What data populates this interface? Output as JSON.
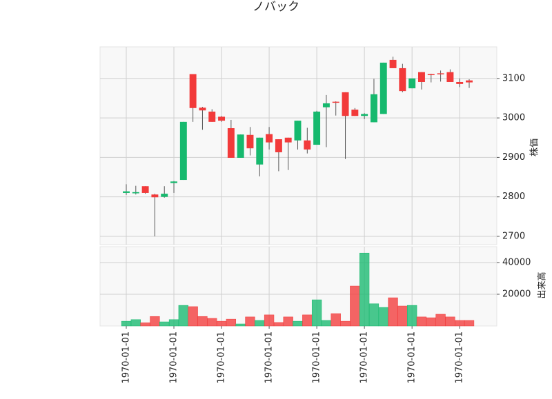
{
  "chart_data": {
    "type": "candlestick",
    "title": "ノバック",
    "categories": [
      "1970-01-01",
      null,
      null,
      null,
      null,
      "1970-01-01",
      null,
      null,
      null,
      null,
      "1970-01-01",
      null,
      null,
      null,
      null,
      "1970-01-01",
      null,
      null,
      null,
      null,
      "1970-01-01",
      null,
      null,
      null,
      null,
      "1970-01-01",
      null,
      null,
      null,
      null,
      "1970-01-01",
      null,
      null,
      null,
      null,
      "1970-01-01",
      null
    ],
    "open": [
      2810,
      2809,
      2827,
      2806,
      2800,
      2835,
      2843,
      3111,
      3026,
      3016,
      3003,
      2974,
      2899,
      2957,
      2882,
      2959,
      2946,
      2950,
      2943,
      2943,
      2932,
      3027,
      3041,
      3065,
      3021,
      3005,
      2989,
      3010,
      3147,
      3126,
      3075,
      3116,
      3111,
      3113,
      3116,
      3091,
      3095
    ],
    "high": [
      2832,
      2828,
      2827,
      2808,
      2827,
      2840,
      2990,
      3111,
      3028,
      3022,
      3005,
      2995,
      2958,
      2977,
      2950,
      2977,
      2946,
      2950,
      2993,
      2975,
      3018,
      3058,
      3042,
      3065,
      3025,
      3012,
      3099,
      3140,
      3155,
      3137,
      3100,
      3116,
      3112,
      3120,
      3123,
      3100,
      3098
    ],
    "low": [
      2805,
      2806,
      2808,
      2700,
      2798,
      2810,
      2843,
      2990,
      2970,
      2990,
      2990,
      2899,
      2899,
      2905,
      2852,
      2920,
      2865,
      2868,
      2920,
      2910,
      2932,
      2926,
      3006,
      2896,
      3005,
      2997,
      2989,
      3010,
      3126,
      3065,
      3075,
      3072,
      3090,
      3092,
      3091,
      3078,
      3076
    ],
    "close": [
      2814,
      2812,
      2810,
      2799,
      2808,
      2839,
      2990,
      3025,
      3019,
      2990,
      2993,
      2899,
      2958,
      2923,
      2950,
      2938,
      2913,
      2938,
      2993,
      2920,
      3016,
      3037,
      3040,
      3005,
      3005,
      3010,
      3060,
      3140,
      3126,
      3068,
      3100,
      3091,
      3110,
      3111,
      3091,
      3086,
      3090
    ],
    "volume": [
      3000,
      4000,
      2000,
      6000,
      2600,
      4000,
      13000,
      12200,
      6000,
      4800,
      3000,
      4300,
      1300,
      5700,
      3500,
      7000,
      2200,
      5700,
      3000,
      7000,
      16500,
      3500,
      7800,
      3000,
      25200,
      46000,
      14000,
      11700,
      17800,
      12600,
      13000,
      5700,
      5200,
      7400,
      5700,
      3500,
      3500
    ],
    "up_color": "#16b96e",
    "down_color": "#f23a3a",
    "ylabel": "株価",
    "ylim": [
      2679,
      3180
    ],
    "yticks": [
      2700,
      2800,
      2900,
      3000,
      3100
    ],
    "volume_label": "出来高",
    "volume_ylim": [
      0,
      50000
    ],
    "volume_yticks": [
      20000,
      40000
    ],
    "grid": true
  }
}
